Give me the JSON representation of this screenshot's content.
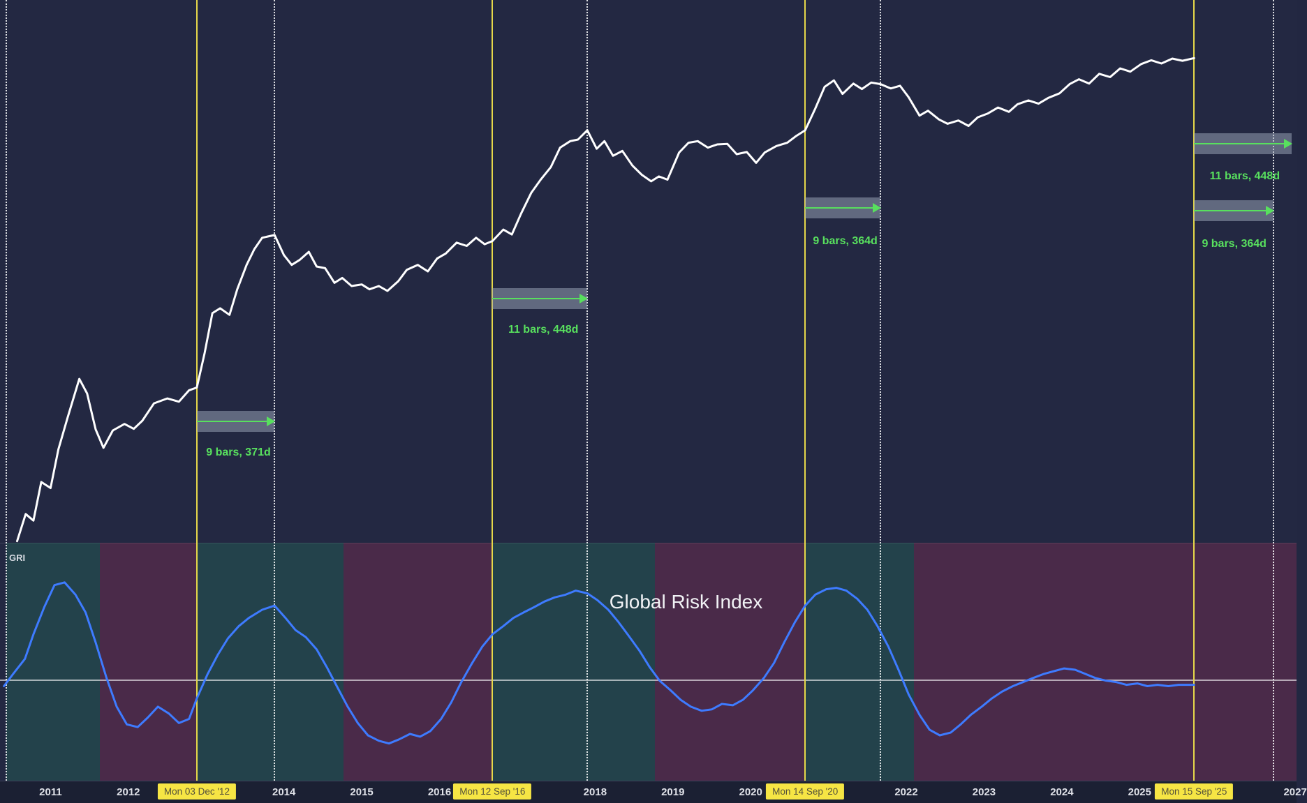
{
  "gri_panel": {
    "indicator_label": "GRI",
    "title": "Global Risk Index"
  },
  "colors": {
    "background": "#232842",
    "price_line": "#ffffff",
    "gri_line": "#3e7bff",
    "bull_region": "rgba(35,120,95,0.33)",
    "bear_region": "rgba(165,50,90,0.30)",
    "halving_line": "#e6d84a",
    "cycle_dotted_line": "rgba(255,255,255,0.85)",
    "measure_box": "rgba(160,170,188,0.5)",
    "measure_green": "#58e05e",
    "axis_background": "#1b2033",
    "axis_text": "#dfe1e8",
    "date_chip_background": "#f6e544",
    "date_chip_text": "#55523a",
    "gri_midline": "rgba(255,255,255,0.6)"
  },
  "chart_data": {
    "type": "line",
    "title": "",
    "x_axis": {
      "unit": "year",
      "base_year": 2011,
      "base_x_pct": 3.9,
      "pct_per_year": 6.0
    },
    "price_scale": {
      "top_pct": 0,
      "bottom_pct": 67.6,
      "note": "log-price normalized 0-100; no y-axis labels visible"
    },
    "gri_scale": {
      "zero_line_pct": 84.6,
      "pct_per_unit": 0.17,
      "note": "oscillator normalized; zero line drawn in panel"
    },
    "year_ticks": [
      {
        "label": "2011",
        "year": 2011
      },
      {
        "label": "2012",
        "year": 2012
      },
      {
        "label": "2014",
        "year": 2014
      },
      {
        "label": "2015",
        "year": 2015
      },
      {
        "label": "2016",
        "year": 2016
      },
      {
        "label": "2018",
        "year": 2018
      },
      {
        "label": "2019",
        "year": 2019
      },
      {
        "label": "2020",
        "year": 2020
      },
      {
        "label": "2022",
        "year": 2022
      },
      {
        "label": "2023",
        "year": 2023
      },
      {
        "label": "2024",
        "year": 2024
      },
      {
        "label": "2025",
        "year": 2025
      },
      {
        "label": "2027",
        "year": 2027
      }
    ],
    "halving_lines": [
      {
        "year": 2012.88,
        "date": "Mon 03 Dec '12"
      },
      {
        "year": 2016.68,
        "date": "Mon 12 Sep '16"
      },
      {
        "year": 2020.7,
        "date": "Mon 14 Sep '20"
      },
      {
        "year": 2025.7,
        "date": "Mon 15 Sep '25"
      }
    ],
    "cycle_dotted_lines": [
      2010.43,
      2013.88,
      2017.9,
      2021.67,
      2026.72
    ],
    "measurements": [
      {
        "from_year": 2012.88,
        "to_year": 2013.88,
        "y_pct": 52.5,
        "label": "9 bars, 371d",
        "label_x_pct": 15.9,
        "label_y_pct": 55.6
      },
      {
        "from_year": 2016.68,
        "to_year": 2017.9,
        "y_pct": 37.2,
        "label": "11 bars, 448d",
        "label_x_pct": 39.2,
        "label_y_pct": 40.3
      },
      {
        "from_year": 2020.7,
        "to_year": 2021.67,
        "y_pct": 25.9,
        "label": "9 bars, 364d",
        "label_x_pct": 62.7,
        "label_y_pct": 29.3
      },
      {
        "from_year": 2025.7,
        "to_year": 2026.95,
        "y_pct": 17.9,
        "label": "11 bars, 448d",
        "label_x_pct": 93.3,
        "label_y_pct": 21.2
      },
      {
        "from_year": 2025.7,
        "to_year": 2026.72,
        "y_pct": 26.2,
        "label": "9 bars, 364d",
        "label_x_pct": 92.7,
        "label_y_pct": 29.6
      }
    ],
    "gri_regions": [
      {
        "from_year": 2010.43,
        "to_year": 2011.63,
        "type": "bull"
      },
      {
        "from_year": 2011.63,
        "to_year": 2012.88,
        "type": "bear"
      },
      {
        "from_year": 2012.88,
        "to_year": 2014.77,
        "type": "bull"
      },
      {
        "from_year": 2014.77,
        "to_year": 2016.68,
        "type": "bear"
      },
      {
        "from_year": 2016.68,
        "to_year": 2018.77,
        "type": "bull"
      },
      {
        "from_year": 2018.77,
        "to_year": 2020.7,
        "type": "bear"
      },
      {
        "from_year": 2020.7,
        "to_year": 2022.1,
        "type": "bull"
      },
      {
        "from_year": 2022.1,
        "to_year": 2027.02,
        "type": "bear"
      }
    ],
    "series": [
      {
        "name": "Price",
        "panel": "price",
        "color": "#ffffff",
        "points": [
          [
            2010.57,
            0.3
          ],
          [
            2010.68,
            5.3
          ],
          [
            2010.78,
            4.1
          ],
          [
            2010.88,
            11.2
          ],
          [
            2011.0,
            10.1
          ],
          [
            2011.1,
            17.2
          ],
          [
            2011.22,
            23.1
          ],
          [
            2011.37,
            30.2
          ],
          [
            2011.47,
            27.5
          ],
          [
            2011.58,
            20.9
          ],
          [
            2011.68,
            17.5
          ],
          [
            2011.8,
            20.7
          ],
          [
            2011.95,
            21.9
          ],
          [
            2012.07,
            21.0
          ],
          [
            2012.18,
            22.5
          ],
          [
            2012.33,
            25.7
          ],
          [
            2012.5,
            26.6
          ],
          [
            2012.65,
            26.0
          ],
          [
            2012.78,
            28.1
          ],
          [
            2012.88,
            28.6
          ],
          [
            2012.98,
            34.9
          ],
          [
            2013.08,
            42.3
          ],
          [
            2013.18,
            43.2
          ],
          [
            2013.3,
            42.0
          ],
          [
            2013.4,
            46.7
          ],
          [
            2013.52,
            51.2
          ],
          [
            2013.62,
            54.1
          ],
          [
            2013.72,
            56.2
          ],
          [
            2013.88,
            56.7
          ],
          [
            2014.0,
            53.0
          ],
          [
            2014.1,
            51.2
          ],
          [
            2014.2,
            52.1
          ],
          [
            2014.32,
            53.6
          ],
          [
            2014.42,
            50.9
          ],
          [
            2014.53,
            50.6
          ],
          [
            2014.65,
            47.9
          ],
          [
            2014.75,
            48.8
          ],
          [
            2014.87,
            47.3
          ],
          [
            2015.0,
            47.6
          ],
          [
            2015.1,
            46.7
          ],
          [
            2015.22,
            47.3
          ],
          [
            2015.33,
            46.4
          ],
          [
            2015.47,
            48.2
          ],
          [
            2015.58,
            50.3
          ],
          [
            2015.72,
            51.2
          ],
          [
            2015.85,
            50.0
          ],
          [
            2015.97,
            52.4
          ],
          [
            2016.08,
            53.3
          ],
          [
            2016.22,
            55.3
          ],
          [
            2016.35,
            54.7
          ],
          [
            2016.47,
            56.2
          ],
          [
            2016.58,
            55.0
          ],
          [
            2016.68,
            55.6
          ],
          [
            2016.82,
            57.7
          ],
          [
            2016.93,
            56.8
          ],
          [
            2017.05,
            60.7
          ],
          [
            2017.18,
            64.5
          ],
          [
            2017.3,
            66.9
          ],
          [
            2017.43,
            69.2
          ],
          [
            2017.55,
            72.8
          ],
          [
            2017.68,
            74.0
          ],
          [
            2017.78,
            74.3
          ],
          [
            2017.9,
            76.0
          ],
          [
            2018.02,
            72.6
          ],
          [
            2018.12,
            74.0
          ],
          [
            2018.23,
            71.3
          ],
          [
            2018.35,
            72.2
          ],
          [
            2018.48,
            69.5
          ],
          [
            2018.6,
            67.8
          ],
          [
            2018.72,
            66.6
          ],
          [
            2018.82,
            67.5
          ],
          [
            2018.93,
            66.9
          ],
          [
            2019.08,
            71.9
          ],
          [
            2019.2,
            73.7
          ],
          [
            2019.32,
            74.0
          ],
          [
            2019.45,
            72.8
          ],
          [
            2019.57,
            73.4
          ],
          [
            2019.7,
            73.5
          ],
          [
            2019.82,
            71.6
          ],
          [
            2019.95,
            72.0
          ],
          [
            2020.07,
            70.0
          ],
          [
            2020.18,
            71.9
          ],
          [
            2020.33,
            73.1
          ],
          [
            2020.47,
            73.7
          ],
          [
            2020.58,
            74.9
          ],
          [
            2020.7,
            76.0
          ],
          [
            2020.83,
            80.0
          ],
          [
            2020.95,
            84.0
          ],
          [
            2021.07,
            85.2
          ],
          [
            2021.18,
            82.7
          ],
          [
            2021.32,
            84.6
          ],
          [
            2021.43,
            83.6
          ],
          [
            2021.55,
            84.8
          ],
          [
            2021.67,
            84.5
          ],
          [
            2021.8,
            83.7
          ],
          [
            2021.92,
            84.2
          ],
          [
            2022.03,
            82.1
          ],
          [
            2022.17,
            78.7
          ],
          [
            2022.28,
            79.6
          ],
          [
            2022.42,
            78.0
          ],
          [
            2022.53,
            77.2
          ],
          [
            2022.67,
            77.8
          ],
          [
            2022.8,
            76.8
          ],
          [
            2022.92,
            78.4
          ],
          [
            2023.05,
            79.1
          ],
          [
            2023.18,
            80.2
          ],
          [
            2023.32,
            79.4
          ],
          [
            2023.43,
            80.8
          ],
          [
            2023.57,
            81.5
          ],
          [
            2023.7,
            80.9
          ],
          [
            2023.83,
            82.0
          ],
          [
            2023.97,
            82.8
          ],
          [
            2024.1,
            84.5
          ],
          [
            2024.22,
            85.4
          ],
          [
            2024.35,
            84.6
          ],
          [
            2024.48,
            86.4
          ],
          [
            2024.62,
            85.8
          ],
          [
            2024.75,
            87.4
          ],
          [
            2024.88,
            86.8
          ],
          [
            2025.02,
            88.2
          ],
          [
            2025.15,
            88.9
          ],
          [
            2025.28,
            88.3
          ],
          [
            2025.42,
            89.2
          ],
          [
            2025.55,
            88.8
          ],
          [
            2025.7,
            89.3
          ]
        ]
      },
      {
        "name": "Global Risk Index",
        "panel": "gri",
        "color": "#3e7bff",
        "points": [
          [
            2010.4,
            -5
          ],
          [
            2010.52,
            4
          ],
          [
            2010.67,
            15
          ],
          [
            2010.78,
            33
          ],
          [
            2010.92,
            53
          ],
          [
            2011.05,
            69
          ],
          [
            2011.18,
            71
          ],
          [
            2011.32,
            62
          ],
          [
            2011.45,
            49
          ],
          [
            2011.58,
            27
          ],
          [
            2011.72,
            1
          ],
          [
            2011.85,
            -20
          ],
          [
            2011.98,
            -33
          ],
          [
            2012.12,
            -35
          ],
          [
            2012.25,
            -28
          ],
          [
            2012.38,
            -20
          ],
          [
            2012.52,
            -25
          ],
          [
            2012.65,
            -32
          ],
          [
            2012.78,
            -29
          ],
          [
            2012.88,
            -14
          ],
          [
            2013.02,
            4
          ],
          [
            2013.15,
            18
          ],
          [
            2013.28,
            30
          ],
          [
            2013.42,
            39
          ],
          [
            2013.55,
            45
          ],
          [
            2013.72,
            51
          ],
          [
            2013.88,
            54
          ],
          [
            2014.02,
            45
          ],
          [
            2014.15,
            36
          ],
          [
            2014.28,
            31
          ],
          [
            2014.42,
            22
          ],
          [
            2014.55,
            9
          ],
          [
            2014.68,
            -5
          ],
          [
            2014.82,
            -20
          ],
          [
            2014.95,
            -32
          ],
          [
            2015.08,
            -41
          ],
          [
            2015.22,
            -45
          ],
          [
            2015.35,
            -47
          ],
          [
            2015.48,
            -44
          ],
          [
            2015.62,
            -40
          ],
          [
            2015.75,
            -42
          ],
          [
            2015.88,
            -38
          ],
          [
            2016.02,
            -29
          ],
          [
            2016.15,
            -17
          ],
          [
            2016.28,
            -2
          ],
          [
            2016.42,
            12
          ],
          [
            2016.55,
            24
          ],
          [
            2016.68,
            33
          ],
          [
            2016.82,
            39
          ],
          [
            2016.95,
            45
          ],
          [
            2017.08,
            49
          ],
          [
            2017.22,
            53
          ],
          [
            2017.35,
            57
          ],
          [
            2017.48,
            60
          ],
          [
            2017.62,
            62
          ],
          [
            2017.75,
            65
          ],
          [
            2017.9,
            63
          ],
          [
            2018.03,
            58
          ],
          [
            2018.17,
            51
          ],
          [
            2018.3,
            42
          ],
          [
            2018.43,
            32
          ],
          [
            2018.57,
            21
          ],
          [
            2018.7,
            9
          ],
          [
            2018.83,
            -1
          ],
          [
            2018.97,
            -8
          ],
          [
            2019.1,
            -15
          ],
          [
            2019.23,
            -20
          ],
          [
            2019.37,
            -23
          ],
          [
            2019.5,
            -22
          ],
          [
            2019.63,
            -18
          ],
          [
            2019.77,
            -19
          ],
          [
            2019.9,
            -15
          ],
          [
            2020.03,
            -8
          ],
          [
            2020.17,
            1
          ],
          [
            2020.3,
            12
          ],
          [
            2020.43,
            27
          ],
          [
            2020.57,
            42
          ],
          [
            2020.7,
            54
          ],
          [
            2020.83,
            62
          ],
          [
            2020.97,
            66
          ],
          [
            2021.1,
            67
          ],
          [
            2021.23,
            65
          ],
          [
            2021.37,
            59
          ],
          [
            2021.5,
            51
          ],
          [
            2021.63,
            39
          ],
          [
            2021.77,
            24
          ],
          [
            2021.9,
            7
          ],
          [
            2022.03,
            -11
          ],
          [
            2022.17,
            -26
          ],
          [
            2022.3,
            -37
          ],
          [
            2022.43,
            -41
          ],
          [
            2022.57,
            -39
          ],
          [
            2022.7,
            -33
          ],
          [
            2022.83,
            -26
          ],
          [
            2022.97,
            -20
          ],
          [
            2023.1,
            -14
          ],
          [
            2023.23,
            -9
          ],
          [
            2023.37,
            -5
          ],
          [
            2023.5,
            -2
          ],
          [
            2023.63,
            1
          ],
          [
            2023.77,
            4
          ],
          [
            2023.9,
            6
          ],
          [
            2024.03,
            8
          ],
          [
            2024.17,
            7
          ],
          [
            2024.3,
            4
          ],
          [
            2024.43,
            1
          ],
          [
            2024.57,
            -1
          ],
          [
            2024.7,
            -2
          ],
          [
            2024.83,
            -4
          ],
          [
            2024.97,
            -3
          ],
          [
            2025.1,
            -5
          ],
          [
            2025.23,
            -4
          ],
          [
            2025.37,
            -5
          ],
          [
            2025.5,
            -4
          ],
          [
            2025.7,
            -4
          ]
        ]
      }
    ]
  }
}
